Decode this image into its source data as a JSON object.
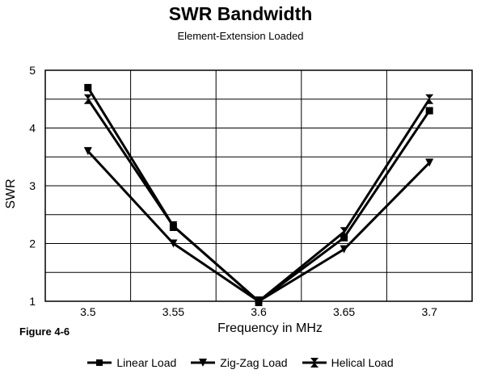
{
  "chart_data": {
    "type": "line",
    "title": "SWR Bandwidth",
    "subtitle": "Element-Extension Loaded",
    "xlabel": "Frequency in MHz",
    "ylabel": "SWR",
    "figure_label": "Figure 4-6",
    "categories": [
      "3.5",
      "3.55",
      "3.6",
      "3.65",
      "3.7"
    ],
    "ylim": [
      1,
      5
    ],
    "yticks": [
      "1",
      "2",
      "3",
      "4",
      "5"
    ],
    "grid": true,
    "legend_position": "bottom",
    "series": [
      {
        "name": "Linear Load",
        "marker": "square",
        "values": [
          4.7,
          2.3,
          1.0,
          2.1,
          4.3
        ]
      },
      {
        "name": "Zig-Zag Load",
        "marker": "triangle-down",
        "values": [
          3.6,
          2.0,
          1.0,
          1.9,
          3.4
        ]
      },
      {
        "name": "Helical Load",
        "marker": "hourglass",
        "values": [
          4.5,
          2.3,
          1.0,
          2.2,
          4.5
        ]
      }
    ]
  }
}
